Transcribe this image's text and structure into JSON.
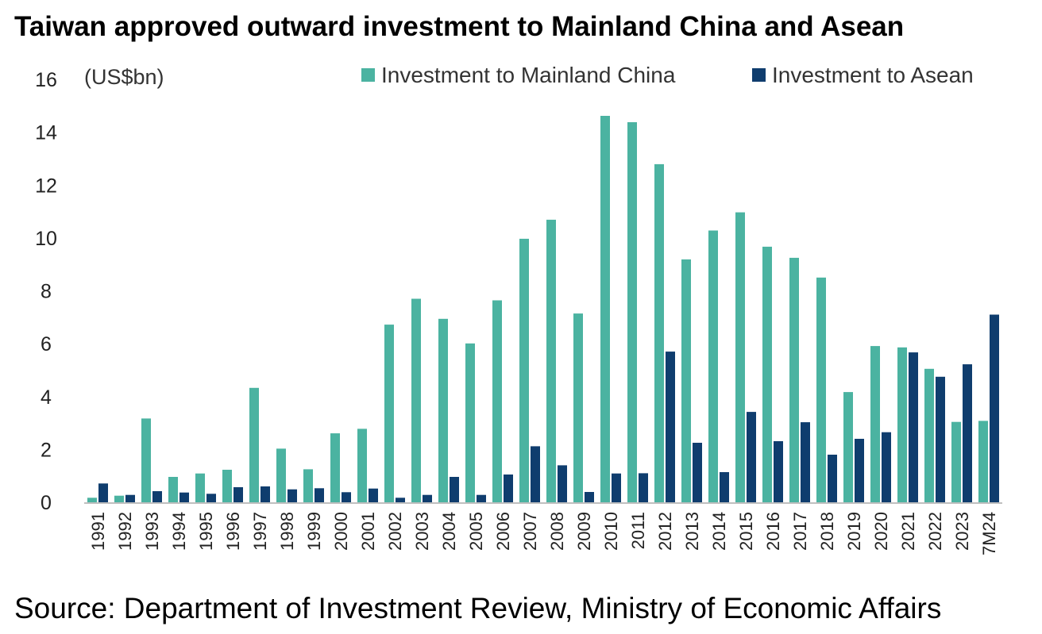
{
  "title": "Taiwan approved outward investment to Mainland China and Asean",
  "source": "Source: Department of Investment Review, Ministry of Economic Affairs",
  "chart_data": {
    "type": "bar",
    "unit_label": "(US$bn)",
    "ylim": [
      0,
      16
    ],
    "yticks": [
      0,
      2,
      4,
      6,
      8,
      10,
      12,
      14,
      16
    ],
    "grid": false,
    "legend_position": "top",
    "categories": [
      "1991",
      "1992",
      "1993",
      "1994",
      "1995",
      "1996",
      "1997",
      "1998",
      "1999",
      "2000",
      "2001",
      "2002",
      "2003",
      "2004",
      "2005",
      "2006",
      "2007",
      "2008",
      "2009",
      "2010",
      "2011",
      "2012",
      "2013",
      "2014",
      "2015",
      "2016",
      "2017",
      "2018",
      "2019",
      "2020",
      "2021",
      "2022",
      "2023",
      "7M24"
    ],
    "series": [
      {
        "name": "Investment to Mainland China",
        "color": "#4BB3A1",
        "values": [
          0.17,
          0.25,
          3.17,
          0.96,
          1.09,
          1.23,
          4.33,
          2.03,
          1.25,
          2.61,
          2.78,
          6.72,
          7.7,
          6.94,
          6.01,
          7.64,
          9.97,
          10.69,
          7.14,
          14.62,
          14.38,
          12.79,
          9.19,
          10.28,
          10.97,
          9.67,
          9.25,
          8.5,
          4.17,
          5.91,
          5.86,
          5.05,
          3.04,
          3.08
        ]
      },
      {
        "name": "Investment to Asean",
        "color": "#0F3D6E",
        "values": [
          0.71,
          0.28,
          0.42,
          0.37,
          0.32,
          0.57,
          0.6,
          0.49,
          0.53,
          0.38,
          0.52,
          0.17,
          0.28,
          0.96,
          0.28,
          1.05,
          2.12,
          1.4,
          0.39,
          1.09,
          1.1,
          5.7,
          2.25,
          1.14,
          3.42,
          2.31,
          3.03,
          1.8,
          2.4,
          2.65,
          5.67,
          4.75,
          5.22,
          7.1
        ]
      }
    ]
  }
}
